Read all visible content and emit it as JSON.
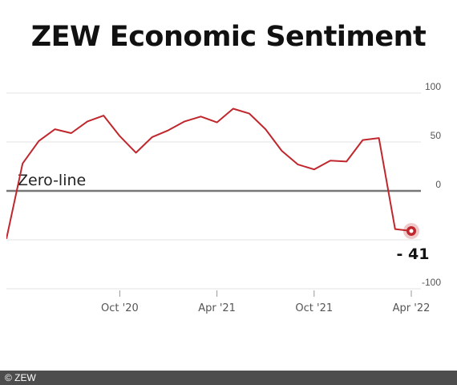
{
  "title": "ZEW Economic Sentiment",
  "footer": "© ZEW",
  "colors": {
    "line": "#c0272d",
    "grid": "#e3e3e3",
    "zero": "#777777",
    "axis_text": "#555555",
    "footer_bg": "#4d4d4d"
  },
  "chart_data": {
    "type": "line",
    "title": "ZEW Economic Sentiment",
    "xlabel": "",
    "ylabel": "",
    "ylim": [
      -100,
      100
    ],
    "yticks": [
      100,
      50,
      0,
      -100
    ],
    "ytick_labels": [
      "100",
      "50",
      "0",
      "-100"
    ],
    "xticks": [
      "Oct '20",
      "Apr '21",
      "Oct '21",
      "Apr '22"
    ],
    "grid": true,
    "zero_line_label": "Zero-line",
    "last_value_label": "- 41",
    "series": [
      {
        "x": [
          "Mar '20",
          "Apr '20",
          "May '20",
          "Jun '20",
          "Jul '20",
          "Aug '20",
          "Sep '20",
          "Oct '20",
          "Nov '20",
          "Dec '20",
          "Jan '21",
          "Feb '21",
          "Mar '21",
          "Apr '21",
          "May '21",
          "Jun '21",
          "Jul '21",
          "Aug '21",
          "Sep '21",
          "Oct '21",
          "Nov '21",
          "Dec '21",
          "Jan '22",
          "Feb '22",
          "Mar '22",
          "Apr '22"
        ],
        "values": [
          -49,
          28,
          51,
          63,
          59,
          71,
          77,
          56,
          39,
          55,
          62,
          71,
          76,
          70,
          84,
          79,
          63,
          41,
          27,
          22,
          31,
          30,
          52,
          54,
          -39,
          -41
        ]
      }
    ]
  }
}
